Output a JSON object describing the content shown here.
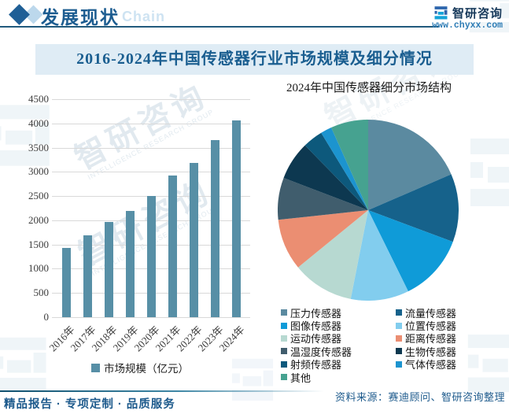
{
  "header": {
    "section_title": "发展现状",
    "decor_word": "Chain",
    "brand_name": "智研咨询",
    "brand_url": "www.chyxx.com"
  },
  "page_title": "2016-2024年中国传感器行业市场规模及细分情况",
  "chart_data": [
    {
      "type": "bar",
      "categories": [
        "2016年",
        "2017年",
        "2018年",
        "2019年",
        "2020年",
        "2021年",
        "2022年",
        "2023年",
        "2024年"
      ],
      "values": [
        1430,
        1690,
        1960,
        2200,
        2500,
        2920,
        3180,
        3650,
        4060
      ],
      "series_name": "市场规模（亿元）",
      "ylim": [
        0,
        4500
      ],
      "ytick_step": 500,
      "bar_color": "#578fa6",
      "grid": true,
      "legend_position": "bottom"
    },
    {
      "type": "pie",
      "title": "2024年中国传感器细分市场结构",
      "labels": [
        "压力传感器",
        "流量传感器",
        "图像传感器",
        "位置传感器",
        "运动传感器",
        "距离传感器",
        "温湿度传感器",
        "生物传感器",
        "射频传感器",
        "气体传感器",
        "其他"
      ],
      "values": [
        18.5,
        12.2,
        12.0,
        10.4,
        11.0,
        9.2,
        7.5,
        6.9,
        3.6,
        2.0,
        6.7
      ],
      "unit": "%",
      "colors": [
        "#5b8aa0",
        "#16628b",
        "#0f9bd8",
        "#82cdee",
        "#b7d9d1",
        "#eb8e72",
        "#405d6d",
        "#0d3850",
        "#0d597c",
        "#1c94cf",
        "#46a290"
      ],
      "legend_position": "bottom-two-columns"
    }
  ],
  "watermark": {
    "cn": "智研咨询",
    "en": "INTELLIGENCE RESEARCH GROUP"
  },
  "footer": {
    "tagline": "精品报告 · 专项定制 · 品质服务",
    "source": "资料来源：赛迪顾问、智研咨询整理"
  }
}
